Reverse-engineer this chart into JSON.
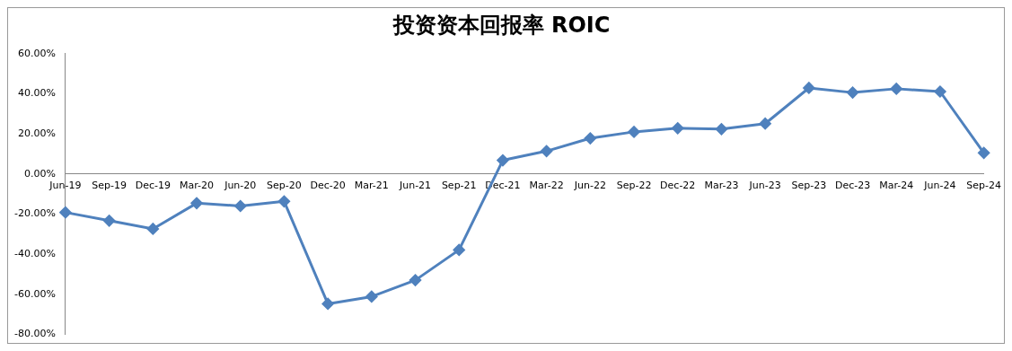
{
  "chart_data": {
    "type": "line",
    "title": "投资资本回报率 ROIC",
    "categories": [
      "Jun-19",
      "Sep-19",
      "Dec-19",
      "Mar-20",
      "Jun-20",
      "Sep-20",
      "Dec-20",
      "Mar-21",
      "Jun-21",
      "Sep-21",
      "Dec-21",
      "Mar-22",
      "Jun-22",
      "Sep-22",
      "Dec-22",
      "Mar-23",
      "Jun-23",
      "Sep-23",
      "Dec-23",
      "Mar-24",
      "Jun-24",
      "Sep-24"
    ],
    "series": [
      {
        "color": "#4f81bd",
        "values": [
          -19.2,
          -23.3,
          -27.4,
          -14.6,
          -16,
          -13.7,
          -64.8,
          -61.2,
          -53,
          -37.9,
          6.8,
          11.4,
          17.8,
          21,
          22.8,
          22.4,
          25.1,
          42.9,
          40.6,
          42.5,
          41.1,
          10.5
        ]
      }
    ],
    "ylim": [
      -80,
      60
    ],
    "yticks": [
      {
        "value": -80,
        "label": "-80.00%"
      },
      {
        "value": -60,
        "label": "-60.00%"
      },
      {
        "value": -40,
        "label": "-40.00%"
      },
      {
        "value": -20,
        "label": "-20.00%"
      },
      {
        "value": 0,
        "label": "0.00%"
      },
      {
        "value": 20,
        "label": "20.00%"
      },
      {
        "value": 40,
        "label": "40.00%"
      },
      {
        "value": 60,
        "label": "60.00%"
      }
    ],
    "grid": false,
    "legend": false,
    "marker": "diamond",
    "line_style": "solid"
  }
}
